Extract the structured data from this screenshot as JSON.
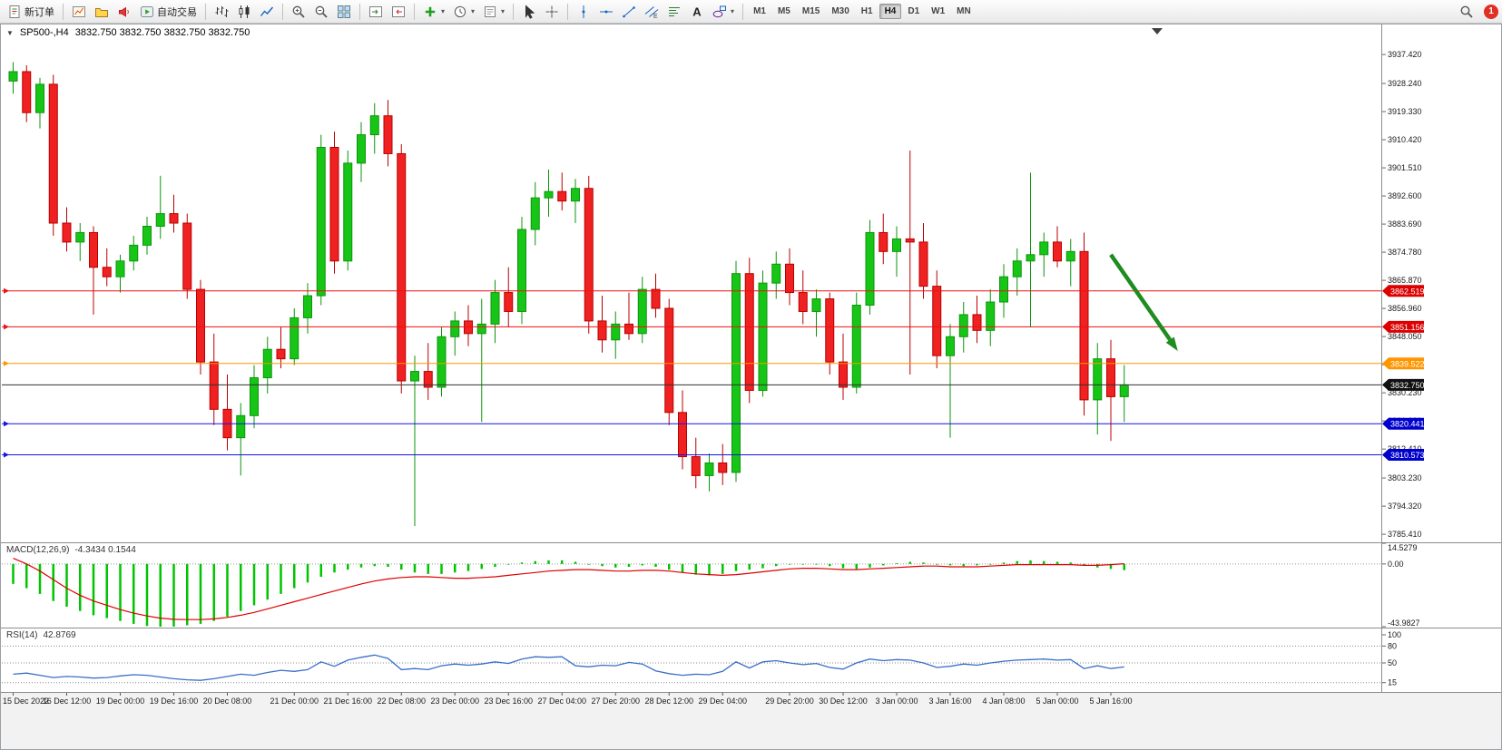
{
  "window": {
    "collapse_icon": "▼",
    "symbol_period": "SP500-,H4",
    "ohlc_text": "3832.750 3832.750 3832.750 3832.750"
  },
  "toolbar": {
    "active_timeframe": "H4",
    "items": [
      {
        "type": "button",
        "name": "new-order-button",
        "icon": "new-order",
        "label": "新订单"
      },
      {
        "type": "sep"
      },
      {
        "type": "button",
        "name": "new-chart-button",
        "icon": "chart-window"
      },
      {
        "type": "button",
        "name": "profiles-button",
        "icon": "folder"
      },
      {
        "type": "button",
        "name": "alerts-button",
        "icon": "megaphone"
      },
      {
        "type": "button",
        "name": "autotrading-button",
        "icon": "autotrade",
        "label": "自动交易"
      },
      {
        "type": "sep"
      },
      {
        "type": "button",
        "name": "bar-chart-button",
        "icon": "bars"
      },
      {
        "type": "button",
        "name": "candlestick-chart-button",
        "icon": "candles"
      },
      {
        "type": "button",
        "name": "line-chart-button",
        "icon": "linechart"
      },
      {
        "type": "sep"
      },
      {
        "type": "button",
        "name": "zoom-in-button",
        "icon": "zoom-in"
      },
      {
        "type": "button",
        "name": "zoom-out-button",
        "icon": "zoom-out"
      },
      {
        "type": "button",
        "name": "tile-windows-button",
        "icon": "tile"
      },
      {
        "type": "sep"
      },
      {
        "type": "button",
        "name": "auto-scroll-button",
        "icon": "autoscroll"
      },
      {
        "type": "button",
        "name": "chart-shift-button",
        "icon": "chartshift"
      },
      {
        "type": "sep"
      },
      {
        "type": "button",
        "name": "indicators-add-button",
        "icon": "plus",
        "dropdown": true
      },
      {
        "type": "button",
        "name": "periods-button",
        "icon": "clock",
        "dropdown": true
      },
      {
        "type": "button",
        "name": "templates-button",
        "icon": "template",
        "dropdown": true
      },
      {
        "type": "sep"
      },
      {
        "type": "button",
        "name": "cursor-button",
        "icon": "cursor"
      },
      {
        "type": "button",
        "name": "crosshair-button",
        "icon": "crosshair"
      },
      {
        "type": "sep"
      },
      {
        "type": "button",
        "name": "vertical-line-button",
        "icon": "vline"
      },
      {
        "type": "button",
        "name": "horizontal-line-button",
        "icon": "hline"
      },
      {
        "type": "button",
        "name": "trendline-button",
        "icon": "trendline"
      },
      {
        "type": "button",
        "name": "equidistant-channel-button",
        "icon": "channel"
      },
      {
        "type": "button",
        "name": "fibonacci-button",
        "icon": "fib"
      },
      {
        "type": "button",
        "name": "text-button",
        "icon": "text-a"
      },
      {
        "type": "button",
        "name": "shapes-button",
        "icon": "shapes",
        "dropdown": true
      },
      {
        "type": "sep"
      },
      {
        "type": "tf",
        "label": "M1"
      },
      {
        "type": "tf",
        "label": "M5"
      },
      {
        "type": "tf",
        "label": "M15"
      },
      {
        "type": "tf",
        "label": "M30"
      },
      {
        "type": "tf",
        "label": "H1"
      },
      {
        "type": "tf",
        "label": "H4"
      },
      {
        "type": "tf",
        "label": "D1"
      },
      {
        "type": "tf",
        "label": "W1"
      },
      {
        "type": "tf",
        "label": "MN"
      },
      {
        "type": "spacer"
      },
      {
        "type": "button",
        "name": "search-button",
        "icon": "search"
      },
      {
        "type": "badge",
        "name": "notifications-badge",
        "label": "1"
      }
    ]
  },
  "chart_data": {
    "type": "candlestick+indicators",
    "symbol": "SP500-",
    "timeframe": "H4",
    "colors": {
      "bull_fill": "#17c517",
      "bull_stroke": "#0b960b",
      "bear_fill": "#f02121",
      "bear_stroke": "#b80000",
      "macd_hist": "#00c400",
      "macd_signal": "#e00000",
      "rsi_line": "#3a6fc8",
      "red_line": "#ee1111",
      "orange_line": "#ff9500",
      "blue_line": "#1414e6",
      "current_line": "#333333",
      "arrow": "#1e8c1e"
    },
    "price_axis": {
      "ticks": [
        "3937.420",
        "3928.240",
        "3919.330",
        "3910.420",
        "3901.510",
        "3892.600",
        "3883.690",
        "3874.780",
        "3865.870",
        "3856.960",
        "3848.050",
        "3839.140",
        "3830.230",
        "3821.320",
        "3812.410",
        "3803.230",
        "3794.320",
        "3785.410"
      ]
    },
    "candles": {
      "open": [
        3929,
        3932,
        3919,
        3928,
        3884,
        3878,
        3881,
        3870,
        3867,
        3872,
        3877,
        3883,
        3887,
        3884,
        3863,
        3840,
        3825,
        3816,
        3823,
        3835,
        3844,
        3841,
        3854,
        3861,
        3908,
        3872,
        3903,
        3912,
        3918,
        3906,
        3834,
        3837,
        3832,
        3848,
        3853,
        3849,
        3852,
        3862,
        3856,
        3882,
        3892,
        3894,
        3891,
        3895,
        3853,
        3847,
        3852,
        3849,
        3863,
        3857,
        3824,
        3810,
        3804,
        3808,
        3805,
        3868,
        3831,
        3865,
        3871,
        3862,
        3856,
        3860,
        3840,
        3832,
        3858,
        3881,
        3875,
        3879,
        3878,
        3864,
        3842,
        3848,
        3855,
        3850,
        3859,
        3867,
        3872,
        3874,
        3878,
        3872,
        3875,
        3828,
        3841,
        3829
      ],
      "high": [
        3935,
        3934,
        3930,
        3931,
        3889,
        3884,
        3883,
        3876,
        3874,
        3880,
        3886,
        3899,
        3893,
        3887,
        3866,
        3849,
        3836,
        3827,
        3839,
        3848,
        3851,
        3857,
        3865,
        3912,
        3913,
        3907,
        3916,
        3922,
        3923,
        3909,
        3842,
        3846,
        3851,
        3856,
        3858,
        3860,
        3866,
        3870,
        3886,
        3897,
        3901,
        3900,
        3898,
        3899,
        3861,
        3856,
        3862,
        3867,
        3868,
        3860,
        3831,
        3816,
        3811,
        3814,
        3872,
        3873,
        3869,
        3875,
        3876,
        3869,
        3863,
        3862,
        3849,
        3862,
        3885,
        3887,
        3883,
        3907,
        3884,
        3869,
        3852,
        3859,
        3861,
        3863,
        3871,
        3876,
        3900,
        3881,
        3883,
        3879,
        3881,
        3846,
        3847,
        3839
      ],
      "low": [
        3925,
        3916,
        3914,
        3880,
        3875,
        3872,
        3855,
        3864,
        3862,
        3869,
        3874,
        3879,
        3881,
        3860,
        3836,
        3820,
        3812,
        3804,
        3819,
        3830,
        3838,
        3839,
        3849,
        3858,
        3868,
        3869,
        3897,
        3906,
        3902,
        3830,
        3788,
        3828,
        3829,
        3842,
        3845,
        3821,
        3846,
        3851,
        3852,
        3877,
        3886,
        3888,
        3884,
        3849,
        3843,
        3841,
        3847,
        3846,
        3854,
        3820,
        3806,
        3800,
        3799,
        3801,
        3802,
        3827,
        3829,
        3860,
        3858,
        3852,
        3848,
        3836,
        3828,
        3830,
        3855,
        3871,
        3867,
        3836,
        3860,
        3838,
        3816,
        3843,
        3846,
        3845,
        3854,
        3861,
        3851,
        3867,
        3870,
        3864,
        3823,
        3817,
        3815,
        3821
      ],
      "close": [
        3932,
        3919,
        3928,
        3884,
        3878,
        3881,
        3870,
        3867,
        3872,
        3877,
        3883,
        3887,
        3884,
        3863,
        3840,
        3825,
        3816,
        3823,
        3835,
        3844,
        3841,
        3854,
        3861,
        3908,
        3872,
        3903,
        3912,
        3918,
        3906,
        3834,
        3837,
        3832,
        3848,
        3853,
        3849,
        3852,
        3862,
        3856,
        3882,
        3892,
        3894,
        3891,
        3895,
        3853,
        3847,
        3852,
        3849,
        3863,
        3857,
        3824,
        3810,
        3804,
        3808,
        3805,
        3868,
        3831,
        3865,
        3871,
        3862,
        3856,
        3860,
        3840,
        3832,
        3858,
        3881,
        3875,
        3879,
        3878,
        3864,
        3842,
        3848,
        3855,
        3850,
        3859,
        3867,
        3872,
        3874,
        3878,
        3872,
        3875,
        3828,
        3841,
        3829,
        3832.75
      ]
    },
    "hlines": [
      {
        "label": "3862.519",
        "value": 3862.519,
        "color": "#ee1111",
        "box": "#dd0000"
      },
      {
        "label": "3851.156",
        "value": 3851.156,
        "color": "#ee1111",
        "box": "#dd0000"
      },
      {
        "label": "3839.522",
        "value": 3839.522,
        "color": "#ff9500",
        "box": "#ff9500"
      },
      {
        "label": "3820.441",
        "value": 3820.441,
        "color": "#1414e6",
        "box": "#0000cc"
      },
      {
        "label": "3810.573",
        "value": 3810.573,
        "color": "#1414e6",
        "box": "#0000cc"
      }
    ],
    "current_price": {
      "label": "3832.750",
      "value": 3832.75,
      "color": "#333333",
      "box": "#111111"
    },
    "arrow": {
      "from_bar": 82,
      "from_price": 3874,
      "to_bar": 87,
      "to_price": 3843.5
    },
    "time_labels": [
      {
        "text": "15 Dec 2022",
        "bar": 0
      },
      {
        "text": "16 Dec 12:00",
        "bar": 4
      },
      {
        "text": "19 Dec 00:00",
        "bar": 8
      },
      {
        "text": "19 Dec 16:00",
        "bar": 12
      },
      {
        "text": "20 Dec 08:00",
        "bar": 16
      },
      {
        "text": "21 Dec 00:00",
        "bar": 21
      },
      {
        "text": "21 Dec 16:00",
        "bar": 25
      },
      {
        "text": "22 Dec 08:00",
        "bar": 29
      },
      {
        "text": "23 Dec 00:00",
        "bar": 33
      },
      {
        "text": "23 Dec 16:00",
        "bar": 37
      },
      {
        "text": "27 Dec 04:00",
        "bar": 41
      },
      {
        "text": "27 Dec 20:00",
        "bar": 45
      },
      {
        "text": "28 Dec 12:00",
        "bar": 49
      },
      {
        "text": "29 Dec 04:00",
        "bar": 53
      },
      {
        "text": "29 Dec 20:00",
        "bar": 58
      },
      {
        "text": "30 Dec 12:00",
        "bar": 62
      },
      {
        "text": "3 Jan 00:00",
        "bar": 66
      },
      {
        "text": "3 Jan 16:00",
        "bar": 70
      },
      {
        "text": "4 Jan 08:00",
        "bar": 74
      },
      {
        "text": "5 Jan 00:00",
        "bar": 78
      },
      {
        "text": "5 Jan 16:00",
        "bar": 82
      }
    ],
    "macd": {
      "name": "MACD(12,26,9)",
      "values_text": "-4.3434 0.1544",
      "axis": [
        {
          "label": "14.5279",
          "value": 14.5279
        },
        {
          "label": "0.00",
          "value": 0
        },
        {
          "label": "-43.9827",
          "value": -43.9827
        }
      ],
      "range": {
        "max": 14.5279,
        "min": -43.9827
      },
      "hist": [
        -14,
        -17,
        -21,
        -26,
        -30,
        -33,
        -36,
        -38,
        -40,
        -42,
        -43.5,
        -44,
        -43.9,
        -43,
        -42,
        -40,
        -37,
        -33,
        -29,
        -25,
        -21,
        -17,
        -13,
        -9,
        -6,
        -4,
        -2.5,
        -1.5,
        -2,
        -4,
        -6,
        -7,
        -7,
        -6,
        -5,
        -3.5,
        -2,
        -0.5,
        1,
        2,
        2.5,
        2.5,
        1.5,
        0,
        -1.5,
        -2.5,
        -2,
        -1,
        -2,
        -4,
        -6,
        -7.5,
        -8,
        -7,
        -5,
        -4,
        -3,
        -1.5,
        -0.5,
        0,
        -0.5,
        -1.5,
        -3,
        -3.5,
        -2.5,
        -1,
        0.5,
        1.5,
        1,
        0,
        -1,
        -1.5,
        -1,
        0,
        1,
        2,
        2.5,
        2,
        1.5,
        1,
        -1,
        -2.5,
        -3.5,
        -4.34
      ],
      "signal": [
        4,
        0,
        -5,
        -11,
        -17,
        -22,
        -26,
        -29,
        -32,
        -34.5,
        -36.5,
        -38,
        -38.8,
        -39,
        -39,
        -38.5,
        -37.5,
        -36,
        -34,
        -31.5,
        -29,
        -26.5,
        -24,
        -21.5,
        -19,
        -16.5,
        -14,
        -12,
        -10.5,
        -9.5,
        -9,
        -9,
        -9.5,
        -10,
        -10,
        -9.5,
        -9,
        -8,
        -7,
        -6,
        -5,
        -4.5,
        -4,
        -4,
        -4.5,
        -5,
        -5,
        -4.5,
        -4.5,
        -5,
        -6,
        -7,
        -7.5,
        -8,
        -7.5,
        -6.5,
        -5.5,
        -4.5,
        -3.5,
        -3,
        -3,
        -3.5,
        -4,
        -4,
        -3.5,
        -3,
        -2.5,
        -2,
        -1.5,
        -1.5,
        -2,
        -2,
        -2,
        -1.5,
        -1,
        -0.5,
        -0.5,
        -0.5,
        -0.5,
        -0.5,
        -1,
        -1,
        -0.5,
        0.15
      ]
    },
    "rsi": {
      "name": "RSI(14)",
      "value_text": "42.8769",
      "axis": [
        {
          "label": "100",
          "value": 100
        },
        {
          "label": "80",
          "value": 80
        },
        {
          "label": "50",
          "value": 50
        },
        {
          "label": "15",
          "value": 15
        }
      ],
      "levels": [
        80,
        50,
        15
      ],
      "values": [
        30,
        32,
        28,
        24,
        26,
        25,
        23,
        24,
        27,
        29,
        28,
        25,
        22,
        20,
        19,
        22,
        26,
        30,
        28,
        33,
        37,
        35,
        38,
        52,
        44,
        55,
        60,
        64,
        58,
        38,
        40,
        38,
        45,
        48,
        46,
        48,
        52,
        49,
        57,
        61,
        60,
        61,
        45,
        43,
        46,
        45,
        51,
        48,
        36,
        31,
        28,
        30,
        29,
        35,
        52,
        41,
        52,
        54,
        50,
        47,
        49,
        42,
        39,
        50,
        57,
        54,
        56,
        55,
        50,
        42,
        44,
        48,
        46,
        50,
        53,
        55,
        56,
        57,
        55,
        56,
        40,
        45,
        40,
        42.88
      ]
    }
  }
}
